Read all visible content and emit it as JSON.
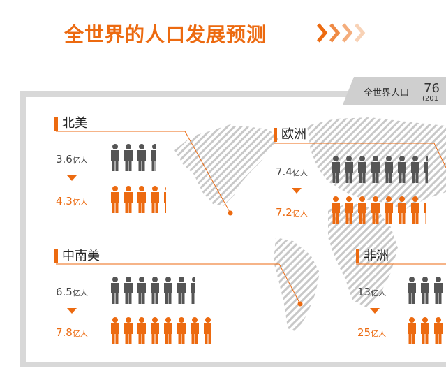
{
  "title": "全世界的人口发展预测",
  "colors": {
    "accent": "#ec6a10",
    "current": "#555555",
    "panel_border": "#d8d8d8",
    "map_stripe": "#c8c8c8"
  },
  "world": {
    "label": "全世界人口",
    "value_fragment": "76",
    "year_fragment": "(201"
  },
  "unit": "亿人",
  "chart_data": {
    "type": "pictograph",
    "title": "全世界的人口发展预测",
    "categories": [
      "北美",
      "欧洲",
      "中南美",
      "非洲"
    ],
    "series": [
      {
        "values": [
          3.6,
          7.4,
          6.5,
          13
        ]
      },
      {
        "values": [
          4.3,
          7.2,
          7.8,
          25
        ]
      }
    ]
  },
  "regions": [
    {
      "name": "北美",
      "now": "3.6",
      "future": "4.3"
    },
    {
      "name": "欧洲",
      "now": "7.4",
      "future": "7.2"
    },
    {
      "name": "中南美",
      "now": "6.5",
      "future": "7.8"
    },
    {
      "name": "非洲",
      "now": "13",
      "future": "25"
    }
  ]
}
